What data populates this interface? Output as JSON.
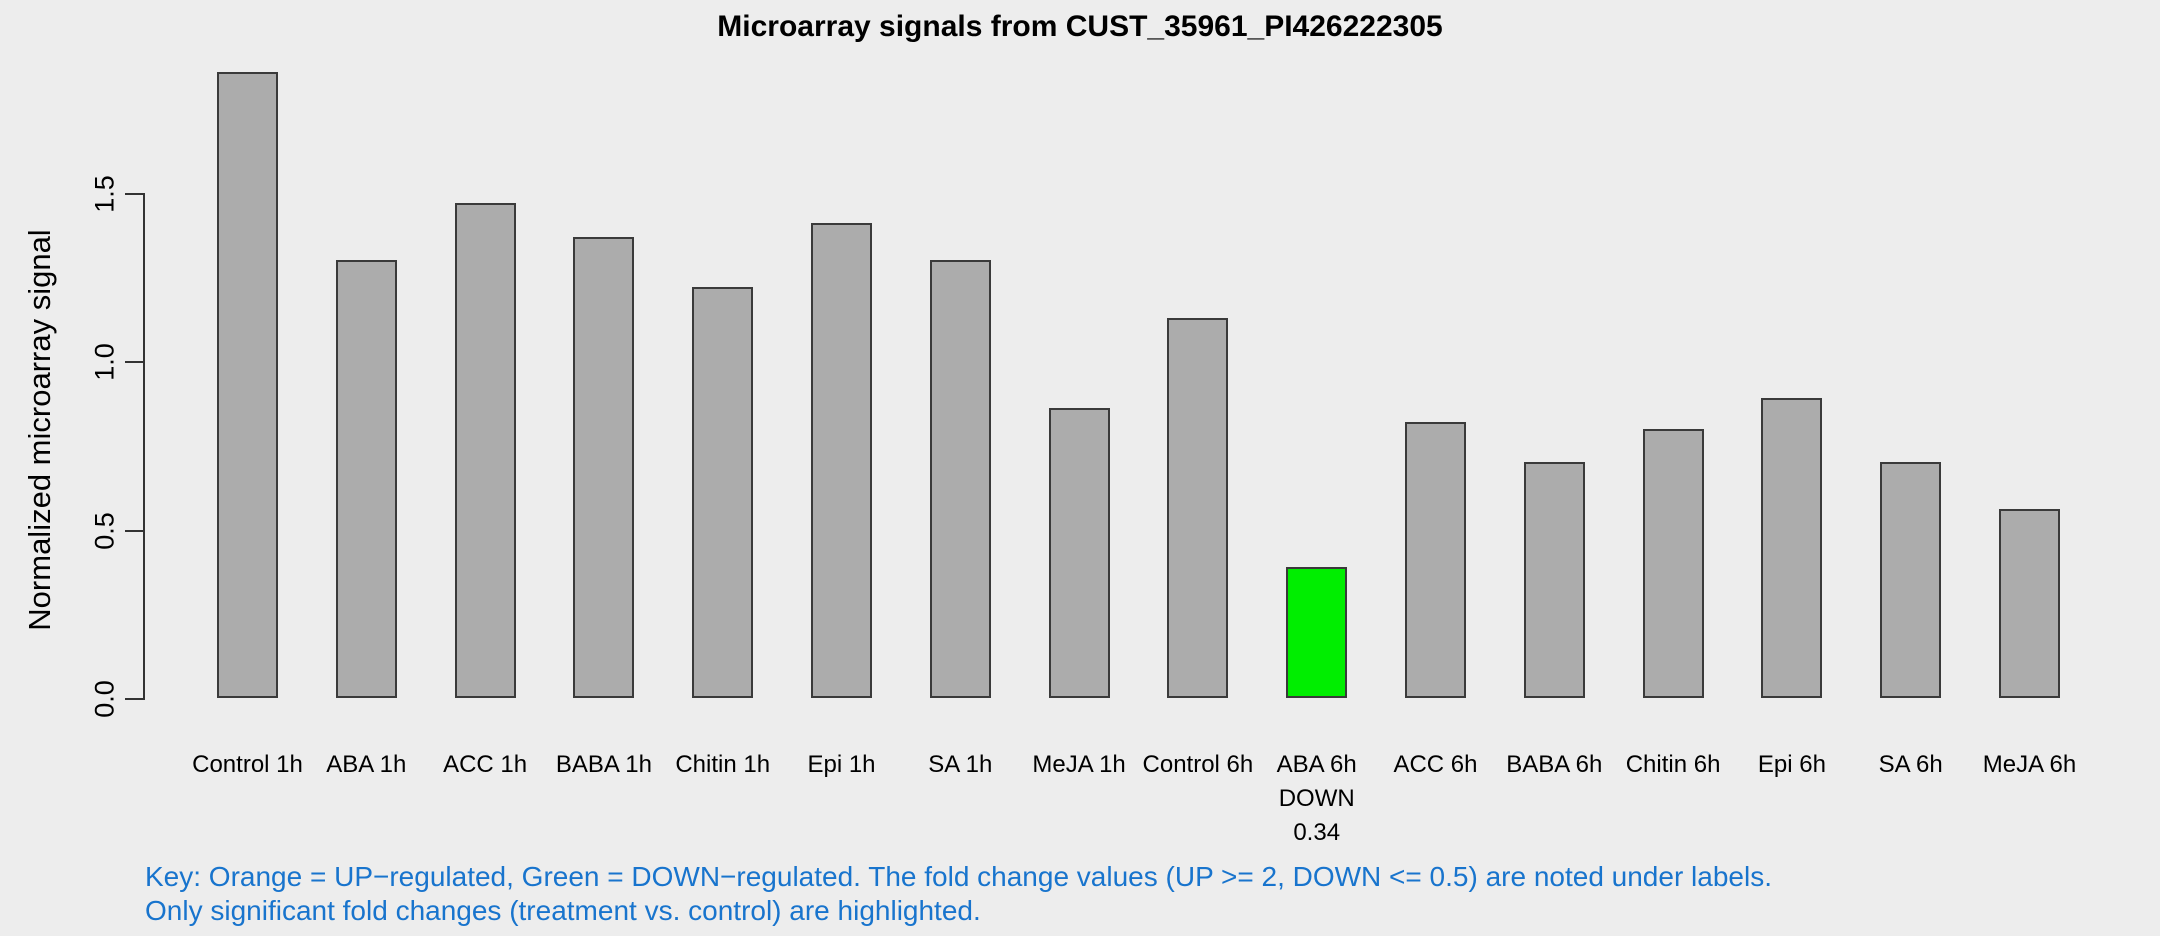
{
  "chart_data": {
    "type": "bar",
    "title": "Microarray signals from CUST_35961_PI426222305",
    "ylabel": "Normalized microarray signal",
    "xlabel": "",
    "yticks": [
      0.0,
      0.5,
      1.0,
      1.5
    ],
    "ytick_labels": [
      "0.0",
      "0.5",
      "1.0",
      "1.5"
    ],
    "ylim": [
      0,
      1.9
    ],
    "grid": false,
    "legend": "none",
    "categories": [
      "Control 1h",
      "ABA 1h",
      "ACC 1h",
      "BABA 1h",
      "Chitin 1h",
      "Epi 1h",
      "SA 1h",
      "MeJA 1h",
      "Control 6h",
      "ABA 6h",
      "ACC 6h",
      "BABA 6h",
      "Chitin 6h",
      "Epi 6h",
      "SA 6h",
      "MeJA 6h"
    ],
    "values": [
      1.86,
      1.3,
      1.47,
      1.37,
      1.22,
      1.41,
      1.3,
      0.86,
      1.13,
      0.39,
      0.82,
      0.7,
      0.8,
      0.89,
      0.7,
      0.56
    ],
    "bar_colors": {
      "default": "#ACACAC",
      "up": "#FFA500",
      "down": "#00EE00"
    },
    "highlights": [
      {
        "index": 9,
        "category": "ABA 6h",
        "type": "DOWN",
        "fold_change": "0.34",
        "color": "#00EE00"
      }
    ],
    "sublabels": {
      "9": [
        "DOWN",
        "0.34"
      ]
    }
  },
  "key": {
    "line1": "Key: Orange = UP−regulated, Green = DOWN−regulated. The fold change values (UP >= 2, DOWN <= 0.5) are noted under labels.",
    "line2": "Only significant fold changes (treatment vs. control) are highlighted.",
    "color": "#1874CD"
  },
  "colors": {
    "background": "#EDEDED",
    "bar_fill": "#ACACAC",
    "bar_border": "#3A3A3A",
    "highlight_down": "#00EE00",
    "axis": "#333333",
    "key_text": "#1874CD"
  }
}
